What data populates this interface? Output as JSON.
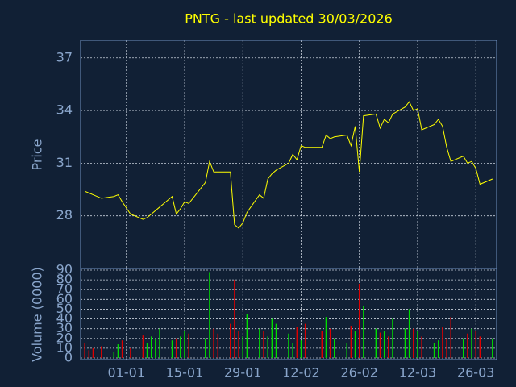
{
  "chart_data": [
    {
      "type": "line",
      "title": "PNTG - last updated 30/03/2026",
      "ylabel": "Price",
      "color": "#ffff00",
      "x": [
        "22-12",
        "23-12",
        "24-12",
        "26-12",
        "29-12",
        "30-12",
        "31-12",
        "02-01",
        "05-01",
        "06-01",
        "07-01",
        "08-01",
        "09-01",
        "12-01",
        "13-01",
        "14-01",
        "15-01",
        "16-01",
        "20-01",
        "21-01",
        "22-01",
        "23-01",
        "26-01",
        "27-01",
        "28-01",
        "29-01",
        "30-01",
        "02-02",
        "03-02",
        "04-02",
        "05-02",
        "06-02",
        "09-02",
        "10-02",
        "11-02",
        "12-02",
        "13-02",
        "17-02",
        "18-02",
        "19-02",
        "20-02",
        "23-02",
        "24-02",
        "25-02",
        "26-02",
        "27-02",
        "02-03",
        "03-03",
        "04-03",
        "05-03",
        "06-03",
        "09-03",
        "10-03",
        "11-03",
        "12-03",
        "13-03",
        "16-03",
        "17-03",
        "18-03",
        "19-03",
        "20-03",
        "23-03",
        "24-03",
        "25-03",
        "26-03",
        "27-03",
        "30-03"
      ],
      "values": [
        29.4,
        29.3,
        29.2,
        29.0,
        29.1,
        29.2,
        28.8,
        28.1,
        27.8,
        27.9,
        28.1,
        28.3,
        28.5,
        29.1,
        28.1,
        28.4,
        28.8,
        28.7,
        29.9,
        31.1,
        30.5,
        30.5,
        30.5,
        27.5,
        27.3,
        27.6,
        28.2,
        29.2,
        29.0,
        30.1,
        30.4,
        30.6,
        31.0,
        31.5,
        31.2,
        32.0,
        31.9,
        31.9,
        32.6,
        32.4,
        32.5,
        32.6,
        32.0,
        33.1,
        30.5,
        33.7,
        33.8,
        33.0,
        33.5,
        33.3,
        33.8,
        34.2,
        34.5,
        34.0,
        34.1,
        32.9,
        33.2,
        33.5,
        33.1,
        31.9,
        31.1,
        31.4,
        31.0,
        31.1,
        30.7,
        29.8,
        30.1
      ],
      "xlim": [
        "21-12",
        "31-03"
      ],
      "ylim": [
        25,
        38
      ],
      "yticks": [
        28,
        31,
        34,
        37
      ],
      "grid": true
    },
    {
      "type": "bar",
      "ylabel": "Volume (0000)",
      "up_color": "#00dd00",
      "down_color": "#dd0000",
      "x": [
        "22-12",
        "23-12",
        "24-12",
        "26-12",
        "29-12",
        "30-12",
        "31-12",
        "02-01",
        "05-01",
        "06-01",
        "07-01",
        "08-01",
        "09-01",
        "12-01",
        "13-01",
        "14-01",
        "15-01",
        "16-01",
        "20-01",
        "21-01",
        "22-01",
        "23-01",
        "26-01",
        "27-01",
        "28-01",
        "29-01",
        "30-01",
        "02-02",
        "03-02",
        "04-02",
        "05-02",
        "06-02",
        "09-02",
        "10-02",
        "11-02",
        "12-02",
        "13-02",
        "17-02",
        "18-02",
        "19-02",
        "20-02",
        "23-02",
        "24-02",
        "25-02",
        "26-02",
        "27-02",
        "02-03",
        "03-03",
        "04-03",
        "05-03",
        "06-03",
        "09-03",
        "10-03",
        "11-03",
        "12-03",
        "13-03",
        "16-03",
        "17-03",
        "18-03",
        "19-03",
        "20-03",
        "23-03",
        "24-03",
        "25-03",
        "26-03",
        "27-03",
        "30-03"
      ],
      "values": [
        15,
        8,
        10,
        12,
        6,
        14,
        18,
        10,
        23,
        15,
        22,
        20,
        30,
        18,
        20,
        22,
        28,
        25,
        20,
        88,
        30,
        25,
        35,
        80,
        28,
        22,
        45,
        30,
        28,
        22,
        40,
        35,
        25,
        15,
        32,
        18,
        35,
        28,
        42,
        30,
        20,
        15,
        33,
        28,
        76,
        53,
        30,
        26,
        28,
        22,
        40,
        30,
        50,
        30,
        28,
        22,
        15,
        18,
        32,
        20,
        42,
        20,
        25,
        30,
        28,
        22,
        20
      ],
      "xlim": [
        "21-12",
        "31-03"
      ],
      "ylim": [
        0,
        90
      ],
      "yticks": [
        0,
        10,
        20,
        30,
        40,
        50,
        60,
        70,
        80,
        90
      ],
      "xticks": [
        "01-01",
        "15-01",
        "29-01",
        "12-02",
        "26-02",
        "12-03",
        "26-03"
      ],
      "grid": true
    }
  ]
}
